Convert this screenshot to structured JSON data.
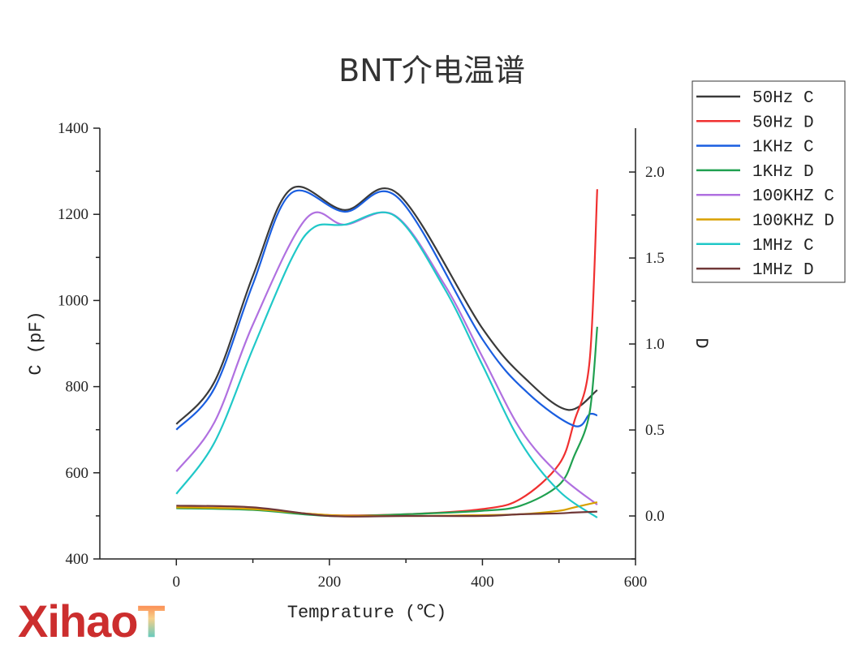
{
  "chart_data": {
    "type": "line",
    "title": "BNT介电温谱",
    "xlabel": "Temprature (℃)",
    "ylabel": "C (pF)",
    "y2label": "D",
    "xlim": [
      -100,
      600
    ],
    "ylim": [
      400,
      1400
    ],
    "y2lim": [
      -0.25,
      2.255
    ],
    "xticks": [
      0,
      200,
      400,
      600
    ],
    "yticks": [
      400,
      600,
      800,
      1000,
      1200,
      1400
    ],
    "y2ticks": [
      "0.0",
      "0.5",
      "1.0",
      "1.5",
      "2.0"
    ],
    "y2tickvals": [
      0,
      0.5,
      1.0,
      1.5,
      2.0
    ],
    "legend_position": "outside-top-right",
    "grid": false,
    "series": [
      {
        "name": "50Hz C",
        "axis": "left",
        "color": "#3a3a3a",
        "x": [
          0,
          50,
          100,
          150,
          220,
          290,
          400,
          460,
          512,
          550
        ],
        "y": [
          713,
          812,
          1057,
          1259,
          1210,
          1247,
          935,
          812,
          746,
          792
        ]
      },
      {
        "name": "50Hz D",
        "axis": "right",
        "color": "#f03030",
        "x": [
          0,
          100,
          200,
          300,
          400,
          450,
          500,
          520,
          540,
          550
        ],
        "y": [
          0.05,
          0.04,
          0.005,
          0.01,
          0.04,
          0.1,
          0.3,
          0.55,
          0.9,
          1.9
        ]
      },
      {
        "name": "1KHz C",
        "axis": "left",
        "color": "#1a5ee0",
        "x": [
          0,
          50,
          100,
          150,
          220,
          290,
          400,
          460,
          520,
          540,
          550
        ],
        "y": [
          700,
          797,
          1038,
          1249,
          1206,
          1238,
          910,
          784,
          709,
          736,
          733
        ]
      },
      {
        "name": "1KHz D",
        "axis": "right",
        "color": "#20a050",
        "x": [
          0,
          100,
          200,
          300,
          400,
          450,
          500,
          520,
          540,
          550
        ],
        "y": [
          0.045,
          0.035,
          0.0,
          0.01,
          0.03,
          0.06,
          0.18,
          0.35,
          0.6,
          1.1
        ]
      },
      {
        "name": "100KHZ C",
        "axis": "left",
        "color": "#b070e0",
        "x": [
          0,
          50,
          100,
          170,
          220,
          285,
          350,
          400,
          450,
          500,
          550
        ],
        "y": [
          603,
          718,
          944,
          1191,
          1176,
          1198,
          1038,
          869,
          700,
          596,
          526
        ]
      },
      {
        "name": "100KHZ D",
        "axis": "right",
        "color": "#d8a000",
        "x": [
          0,
          100,
          200,
          300,
          400,
          450,
          500,
          520,
          550
        ],
        "y": [
          0.05,
          0.04,
          0.005,
          0.0,
          0.005,
          0.01,
          0.03,
          0.05,
          0.08
        ]
      },
      {
        "name": "1MHz C",
        "axis": "left",
        "color": "#20c8c8",
        "x": [
          0,
          50,
          100,
          150,
          180,
          220,
          285,
          350,
          400,
          450,
          500,
          550
        ],
        "y": [
          551,
          671,
          888,
          1095,
          1170,
          1176,
          1197,
          1029,
          850,
          671,
          558,
          496
        ]
      },
      {
        "name": "1MHz D",
        "axis": "right",
        "color": "#703838",
        "x": [
          0,
          100,
          200,
          300,
          400,
          450,
          500,
          520,
          550
        ],
        "y": [
          0.06,
          0.05,
          0.0,
          0.0,
          0.0,
          0.01,
          0.015,
          0.02,
          0.025
        ]
      }
    ]
  },
  "watermark": {
    "text_main": "Xihao",
    "text_accent": "T"
  }
}
